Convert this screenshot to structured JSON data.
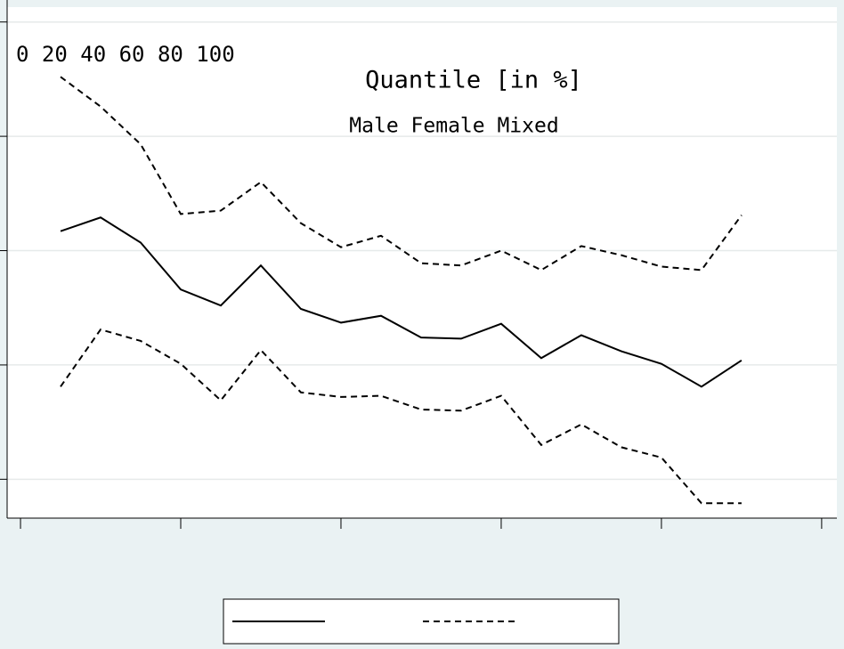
{
  "chart_data": {
    "type": "line",
    "title": "Quantile [in %]",
    "annotations": [
      "0 20 40 60 80 100",
      "Male Female Mixed"
    ],
    "x": [
      5,
      10,
      15,
      20,
      25,
      30,
      35,
      40,
      45,
      50,
      55,
      60,
      65,
      70,
      75,
      80,
      85,
      90
    ],
    "series": [
      {
        "color": "#000000",
        "dash": "solid",
        "values": [
          2.17,
          2.29,
          2.07,
          1.66,
          1.52,
          1.87,
          1.49,
          1.37,
          1.43,
          1.24,
          1.23,
          1.36,
          1.06,
          1.26,
          1.12,
          1.01,
          0.81,
          1.04
        ]
      },
      {
        "color": "#000000",
        "dash": "dashed",
        "values": [
          3.52,
          3.26,
          2.93,
          2.32,
          2.35,
          2.6,
          2.24,
          2.03,
          2.13,
          1.89,
          1.87,
          2.0,
          1.83,
          2.04,
          1.96,
          1.86,
          1.83,
          2.31
        ]
      },
      {
        "color": "#000000",
        "dash": "dashed",
        "values": [
          0.81,
          1.31,
          1.21,
          1.01,
          0.69,
          1.13,
          0.76,
          0.72,
          0.73,
          0.61,
          0.6,
          0.73,
          0.3,
          0.48,
          0.28,
          0.19,
          -0.21,
          -0.21
        ]
      }
    ],
    "xlim": [
      -1.67,
      101.9
    ],
    "xticks": [
      0,
      20,
      40,
      60,
      80,
      100
    ],
    "ylim": [
      -0.34,
      4.13
    ],
    "yticks": [
      0,
      1,
      2,
      3,
      4
    ],
    "grid": true
  }
}
